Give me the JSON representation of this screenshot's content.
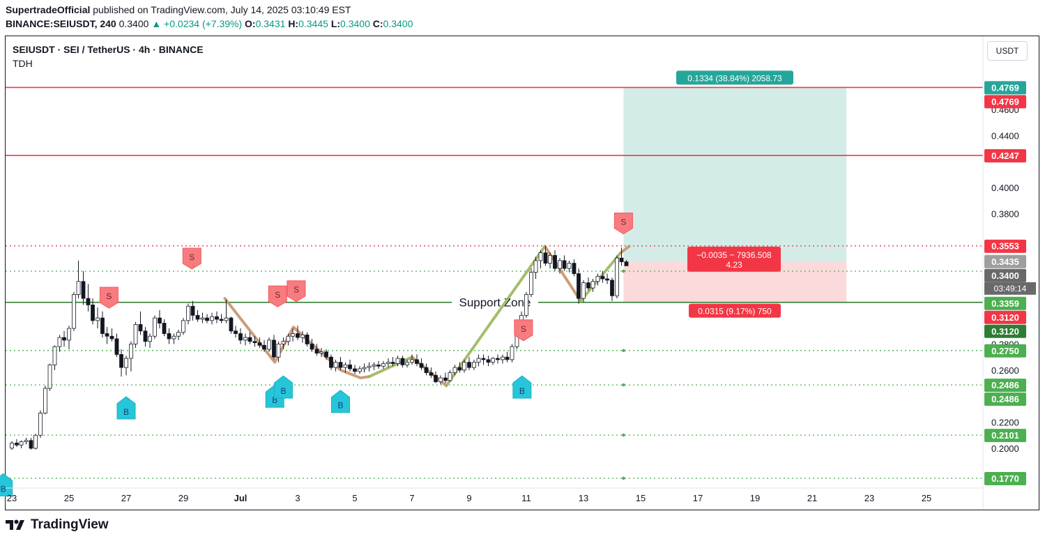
{
  "header": {
    "publisher": "SupertradeOfficial",
    "published_text": " published on TradingView.com, July 14, 2025 03:10:49 EST",
    "symbol_tf": "BINANCE:SEIUSDT, 240",
    "last": "0.3400",
    "change": "▲ +0.0234 (+7.39%)",
    "o_label": "O:",
    "o": "0.3431",
    "h_label": "H:",
    "h": "0.3445",
    "l_label": "L:",
    "l": "0.3400",
    "c_label": "C:",
    "c": "0.3400"
  },
  "legend": {
    "title": "SEIUSDT · SEI / TetherUS · 4h · BINANCE",
    "indicator": "TDH"
  },
  "currency_button": "USDT",
  "footer": {
    "brand": "TradingView"
  },
  "colors": {
    "up": "#089981",
    "down": "#131722",
    "red": "#f23645",
    "green": "#4caf50",
    "buy_signal": "#26c6da",
    "sell_signal": "#f77c80",
    "target_zone": "#d4ece8",
    "stop_zone": "#fbdadb"
  },
  "chart_data": {
    "type": "candlestick",
    "ylim": [
      0.18,
      0.49
    ],
    "y_axis_ticks": [
      "0.4600",
      "0.4400",
      "0.4000",
      "0.3800",
      "0.2800",
      "0.2600",
      "0.2200",
      "0.2000"
    ],
    "x_axis_ticks": [
      {
        "label": "23",
        "day": 23
      },
      {
        "label": "25",
        "day": 25
      },
      {
        "label": "27",
        "day": 27
      },
      {
        "label": "29",
        "day": 29
      },
      {
        "label": "Jul",
        "day": 31
      },
      {
        "label": "3",
        "day": 33
      },
      {
        "label": "5",
        "day": 35
      },
      {
        "label": "7",
        "day": 37
      },
      {
        "label": "9",
        "day": 39
      },
      {
        "label": "11",
        "day": 41
      },
      {
        "label": "13",
        "day": 43
      },
      {
        "label": "15",
        "day": 45
      },
      {
        "label": "17",
        "day": 47
      },
      {
        "label": "19",
        "day": 49
      },
      {
        "label": "21",
        "day": 51
      },
      {
        "label": "23",
        "day": 53
      },
      {
        "label": "25",
        "day": 55
      }
    ],
    "price_labels": [
      {
        "value": 0.4769,
        "text": "0.4769",
        "color": "#26a69a"
      },
      {
        "value": 0.4769,
        "text": "0.4769",
        "color": "#f23645"
      },
      {
        "value": 0.4247,
        "text": "0.4247",
        "color": "#f23645"
      },
      {
        "value": 0.3553,
        "text": "0.3553",
        "color": "#f23645"
      },
      {
        "value": 0.3435,
        "text": "0.3435",
        "color": "#9e9e9e"
      },
      {
        "value": 0.34,
        "text": "0.3400",
        "color": "#696969"
      },
      {
        "value": 0.3359,
        "text": "0.3359",
        "color": "#4caf50"
      },
      {
        "value": 0.312,
        "text": "0.3120",
        "color": "#f23645"
      },
      {
        "value": 0.312,
        "text": "0.3120",
        "color": "#2e7d32"
      },
      {
        "value": 0.275,
        "text": "0.2750",
        "color": "#4caf50"
      },
      {
        "value": 0.2486,
        "text": "0.2486",
        "color": "#4caf50"
      },
      {
        "value": 0.2486,
        "text": "0.2486",
        "color": "#4caf50"
      },
      {
        "value": 0.2101,
        "text": "0.2101",
        "color": "#4caf50"
      },
      {
        "value": 0.177,
        "text": "0.1770",
        "color": "#4caf50"
      }
    ],
    "countdown": "03:49:14",
    "horizontal_lines": [
      {
        "value": 0.4769,
        "color": "#f23645",
        "style": "solid"
      },
      {
        "value": 0.4247,
        "color": "#f23645",
        "style": "solid"
      },
      {
        "value": 0.3553,
        "color": "#f23645",
        "style": "dotted"
      },
      {
        "value": 0.3359,
        "color": "#4caf50",
        "style": "dotted"
      },
      {
        "value": 0.312,
        "color": "#2e7d32",
        "style": "solid"
      },
      {
        "value": 0.275,
        "color": "#4caf50",
        "style": "dotted"
      },
      {
        "value": 0.2486,
        "color": "#4caf50",
        "style": "dotted"
      },
      {
        "value": 0.2101,
        "color": "#4caf50",
        "style": "dotted"
      },
      {
        "value": 0.177,
        "color": "#4caf50",
        "style": "dotted"
      }
    ],
    "support_zone_label": "Support Zone",
    "position": {
      "entry": 0.3435,
      "target": 0.4769,
      "stop": 0.312,
      "from_day": 44.4,
      "to_day": 52.2,
      "target_text": "0.1334 (38.84%) 2058.73",
      "mid_text_1": "−0.0035 ~ 7936.508",
      "mid_text_2": "4.23",
      "stop_text": "0.0315 (9.17%) 750"
    },
    "candles": [
      [
        23.0,
        0.2001,
        0.2055,
        0.1988,
        0.204
      ],
      [
        23.17,
        0.204,
        0.207,
        0.201,
        0.2025
      ],
      [
        23.33,
        0.2025,
        0.206,
        0.2,
        0.205
      ],
      [
        23.5,
        0.205,
        0.208,
        0.203,
        0.206
      ],
      [
        23.67,
        0.206,
        0.208,
        0.199,
        0.2
      ],
      [
        23.83,
        0.2,
        0.211,
        0.199,
        0.21
      ],
      [
        24.0,
        0.21,
        0.229,
        0.208,
        0.227
      ],
      [
        24.17,
        0.227,
        0.248,
        0.226,
        0.246
      ],
      [
        24.33,
        0.246,
        0.265,
        0.244,
        0.264
      ],
      [
        24.5,
        0.264,
        0.279,
        0.26,
        0.278
      ],
      [
        24.67,
        0.278,
        0.287,
        0.274,
        0.285
      ],
      [
        24.83,
        0.285,
        0.29,
        0.278,
        0.283
      ],
      [
        25.0,
        0.283,
        0.294,
        0.276,
        0.292
      ],
      [
        25.17,
        0.292,
        0.32,
        0.29,
        0.318
      ],
      [
        25.33,
        0.318,
        0.344,
        0.315,
        0.328
      ],
      [
        25.5,
        0.328,
        0.336,
        0.31,
        0.315
      ],
      [
        25.67,
        0.315,
        0.326,
        0.305,
        0.31
      ],
      [
        25.83,
        0.31,
        0.315,
        0.295,
        0.298
      ],
      [
        26.0,
        0.298,
        0.308,
        0.292,
        0.3
      ],
      [
        26.17,
        0.3,
        0.305,
        0.285,
        0.288
      ],
      [
        26.33,
        0.288,
        0.293,
        0.28,
        0.286
      ],
      [
        26.5,
        0.286,
        0.292,
        0.282,
        0.284
      ],
      [
        26.67,
        0.284,
        0.288,
        0.27,
        0.272
      ],
      [
        26.83,
        0.272,
        0.276,
        0.255,
        0.262
      ],
      [
        27.0,
        0.262,
        0.271,
        0.256,
        0.269
      ],
      [
        27.17,
        0.269,
        0.282,
        0.259,
        0.28
      ],
      [
        27.33,
        0.28,
        0.297,
        0.277,
        0.295
      ],
      [
        27.5,
        0.295,
        0.305,
        0.287,
        0.29
      ],
      [
        27.67,
        0.29,
        0.293,
        0.278,
        0.282
      ],
      [
        27.83,
        0.282,
        0.288,
        0.277,
        0.286
      ],
      [
        28.0,
        0.286,
        0.302,
        0.284,
        0.3
      ],
      [
        28.17,
        0.3,
        0.306,
        0.292,
        0.296
      ],
      [
        28.33,
        0.296,
        0.299,
        0.286,
        0.288
      ],
      [
        28.5,
        0.288,
        0.292,
        0.28,
        0.284
      ],
      [
        28.67,
        0.284,
        0.288,
        0.28,
        0.286
      ],
      [
        28.83,
        0.286,
        0.291,
        0.283,
        0.289
      ],
      [
        29.0,
        0.289,
        0.3,
        0.287,
        0.298
      ],
      [
        29.17,
        0.298,
        0.311,
        0.295,
        0.309
      ],
      [
        29.33,
        0.309,
        0.313,
        0.298,
        0.302
      ],
      [
        29.5,
        0.302,
        0.306,
        0.297,
        0.299
      ],
      [
        29.67,
        0.299,
        0.304,
        0.296,
        0.3
      ],
      [
        29.83,
        0.3,
        0.303,
        0.296,
        0.298
      ],
      [
        30.0,
        0.298,
        0.304,
        0.295,
        0.301
      ],
      [
        30.17,
        0.301,
        0.305,
        0.296,
        0.299
      ],
      [
        30.33,
        0.299,
        0.303,
        0.296,
        0.298
      ],
      [
        30.5,
        0.298,
        0.314,
        0.296,
        0.3
      ],
      [
        30.67,
        0.3,
        0.301,
        0.288,
        0.29
      ],
      [
        30.83,
        0.29,
        0.294,
        0.285,
        0.288
      ],
      [
        31.0,
        0.288,
        0.292,
        0.28,
        0.283
      ],
      [
        31.17,
        0.283,
        0.288,
        0.279,
        0.285
      ],
      [
        31.33,
        0.285,
        0.289,
        0.28,
        0.282
      ],
      [
        31.5,
        0.282,
        0.286,
        0.278,
        0.281
      ],
      [
        31.67,
        0.281,
        0.285,
        0.277,
        0.279
      ],
      [
        31.83,
        0.279,
        0.283,
        0.274,
        0.276
      ],
      [
        32.0,
        0.276,
        0.285,
        0.274,
        0.283
      ],
      [
        32.17,
        0.283,
        0.287,
        0.268,
        0.27
      ],
      [
        32.33,
        0.27,
        0.282,
        0.266,
        0.28
      ],
      [
        32.5,
        0.28,
        0.285,
        0.276,
        0.282
      ],
      [
        32.67,
        0.282,
        0.288,
        0.279,
        0.286
      ],
      [
        32.83,
        0.286,
        0.292,
        0.282,
        0.288
      ],
      [
        33.0,
        0.288,
        0.294,
        0.283,
        0.285
      ],
      [
        33.17,
        0.285,
        0.29,
        0.281,
        0.287
      ],
      [
        33.33,
        0.287,
        0.289,
        0.278,
        0.28
      ],
      [
        33.5,
        0.28,
        0.284,
        0.274,
        0.276
      ],
      [
        33.67,
        0.276,
        0.28,
        0.271,
        0.273
      ],
      [
        33.83,
        0.273,
        0.277,
        0.27,
        0.274
      ],
      [
        34.0,
        0.274,
        0.276,
        0.268,
        0.27
      ],
      [
        34.17,
        0.27,
        0.272,
        0.26,
        0.262
      ],
      [
        34.33,
        0.262,
        0.268,
        0.259,
        0.266
      ],
      [
        34.5,
        0.266,
        0.27,
        0.26,
        0.262
      ],
      [
        34.67,
        0.262,
        0.266,
        0.258,
        0.264
      ],
      [
        34.83,
        0.264,
        0.268,
        0.259,
        0.261
      ],
      [
        35.0,
        0.261,
        0.264,
        0.257,
        0.259
      ],
      [
        35.17,
        0.259,
        0.263,
        0.257,
        0.261
      ],
      [
        35.33,
        0.261,
        0.265,
        0.258,
        0.262
      ],
      [
        35.5,
        0.262,
        0.266,
        0.259,
        0.263
      ],
      [
        35.67,
        0.263,
        0.266,
        0.26,
        0.264
      ],
      [
        35.83,
        0.264,
        0.267,
        0.261,
        0.263
      ],
      [
        36.0,
        0.263,
        0.267,
        0.261,
        0.265
      ],
      [
        36.17,
        0.265,
        0.269,
        0.262,
        0.266
      ],
      [
        36.33,
        0.266,
        0.27,
        0.263,
        0.265
      ],
      [
        36.5,
        0.265,
        0.271,
        0.263,
        0.269
      ],
      [
        36.67,
        0.269,
        0.271,
        0.262,
        0.264
      ],
      [
        36.83,
        0.264,
        0.268,
        0.262,
        0.266
      ],
      [
        37.0,
        0.266,
        0.272,
        0.264,
        0.268
      ],
      [
        37.17,
        0.268,
        0.272,
        0.263,
        0.265
      ],
      [
        37.33,
        0.265,
        0.269,
        0.26,
        0.262
      ],
      [
        37.5,
        0.262,
        0.265,
        0.256,
        0.258
      ],
      [
        37.67,
        0.258,
        0.262,
        0.254,
        0.256
      ],
      [
        37.83,
        0.256,
        0.259,
        0.25,
        0.251
      ],
      [
        38.0,
        0.251,
        0.256,
        0.249,
        0.254
      ],
      [
        38.17,
        0.254,
        0.258,
        0.25,
        0.252
      ],
      [
        38.33,
        0.252,
        0.26,
        0.251,
        0.258
      ],
      [
        38.5,
        0.258,
        0.264,
        0.256,
        0.262
      ],
      [
        38.67,
        0.262,
        0.266,
        0.258,
        0.26
      ],
      [
        38.83,
        0.26,
        0.268,
        0.258,
        0.266
      ],
      [
        39.0,
        0.266,
        0.27,
        0.26,
        0.262
      ],
      [
        39.17,
        0.262,
        0.268,
        0.26,
        0.266
      ],
      [
        39.33,
        0.266,
        0.272,
        0.263,
        0.269
      ],
      [
        39.5,
        0.269,
        0.272,
        0.264,
        0.268
      ],
      [
        39.67,
        0.268,
        0.271,
        0.263,
        0.266
      ],
      [
        39.83,
        0.266,
        0.27,
        0.264,
        0.269
      ],
      [
        40.0,
        0.269,
        0.272,
        0.265,
        0.268
      ],
      [
        40.17,
        0.268,
        0.272,
        0.265,
        0.27
      ],
      [
        40.33,
        0.27,
        0.274,
        0.266,
        0.268
      ],
      [
        40.5,
        0.268,
        0.28,
        0.266,
        0.278
      ],
      [
        40.67,
        0.278,
        0.29,
        0.276,
        0.288
      ],
      [
        40.83,
        0.288,
        0.305,
        0.286,
        0.302
      ],
      [
        41.0,
        0.302,
        0.32,
        0.3,
        0.318
      ],
      [
        41.17,
        0.318,
        0.338,
        0.316,
        0.335
      ],
      [
        41.33,
        0.335,
        0.347,
        0.33,
        0.344
      ],
      [
        41.5,
        0.344,
        0.352,
        0.338,
        0.35
      ],
      [
        41.67,
        0.35,
        0.355,
        0.34,
        0.342
      ],
      [
        41.83,
        0.342,
        0.35,
        0.338,
        0.348
      ],
      [
        42.0,
        0.348,
        0.352,
        0.336,
        0.338
      ],
      [
        42.17,
        0.338,
        0.346,
        0.334,
        0.344
      ],
      [
        42.33,
        0.344,
        0.348,
        0.336,
        0.338
      ],
      [
        42.5,
        0.338,
        0.344,
        0.335,
        0.342
      ],
      [
        42.67,
        0.342,
        0.345,
        0.332,
        0.334
      ],
      [
        42.83,
        0.334,
        0.338,
        0.311,
        0.315
      ],
      [
        43.0,
        0.315,
        0.329,
        0.312,
        0.327
      ],
      [
        43.17,
        0.327,
        0.331,
        0.321,
        0.323
      ],
      [
        43.33,
        0.323,
        0.33,
        0.32,
        0.328
      ],
      [
        43.5,
        0.328,
        0.334,
        0.325,
        0.332
      ],
      [
        43.67,
        0.332,
        0.336,
        0.327,
        0.33
      ],
      [
        43.83,
        0.33,
        0.334,
        0.326,
        0.329
      ],
      [
        44.0,
        0.329,
        0.331,
        0.313,
        0.317
      ],
      [
        44.17,
        0.317,
        0.348,
        0.315,
        0.346
      ],
      [
        44.33,
        0.346,
        0.354,
        0.34,
        0.3431
      ],
      [
        44.5,
        0.3431,
        0.3445,
        0.34,
        0.34
      ]
    ],
    "wave_lines": [
      {
        "color": "#c7926e",
        "points": [
          [
            30.45,
            0.315
          ],
          [
            32.2,
            0.266
          ],
          [
            32.85,
            0.293
          ],
          [
            34.5,
            0.26
          ],
          [
            35.2,
            0.254
          ],
          [
            35.5,
            0.255
          ]
        ]
      },
      {
        "color": "#9ab65c",
        "points": [
          [
            35.5,
            0.255
          ],
          [
            37.0,
            0.27
          ]
        ]
      },
      {
        "color": "#c7926e",
        "points": [
          [
            37.0,
            0.27
          ],
          [
            38.2,
            0.248
          ]
        ]
      },
      {
        "color": "#9ab65c",
        "points": [
          [
            38.2,
            0.248
          ],
          [
            41.65,
            0.355
          ]
        ]
      },
      {
        "color": "#c7926e",
        "points": [
          [
            41.65,
            0.355
          ],
          [
            42.9,
            0.313
          ]
        ]
      },
      {
        "color": "#9ab65c",
        "points": [
          [
            42.9,
            0.313
          ],
          [
            44.3,
            0.35
          ]
        ]
      },
      {
        "color": "#c7926e",
        "points": [
          [
            44.3,
            0.35
          ],
          [
            44.6,
            0.355
          ]
        ]
      }
    ],
    "signals": [
      {
        "type": "S",
        "day": 26.4,
        "value": 0.315
      },
      {
        "type": "S",
        "day": 29.3,
        "value": 0.345
      },
      {
        "type": "S",
        "day": 32.3,
        "value": 0.316
      },
      {
        "type": "S",
        "day": 32.95,
        "value": 0.32
      },
      {
        "type": "S",
        "day": 40.9,
        "value": 0.29
      },
      {
        "type": "S",
        "day": 44.4,
        "value": 0.372
      },
      {
        "type": "B",
        "day": 27.0,
        "value": 0.231
      },
      {
        "type": "B",
        "day": 32.2,
        "value": 0.24
      },
      {
        "type": "B",
        "day": 32.5,
        "value": 0.247
      },
      {
        "type": "B",
        "day": 34.5,
        "value": 0.236
      },
      {
        "type": "B",
        "day": 40.85,
        "value": 0.247
      },
      {
        "type": "B",
        "day": 22.7,
        "value": 0.172
      }
    ]
  }
}
